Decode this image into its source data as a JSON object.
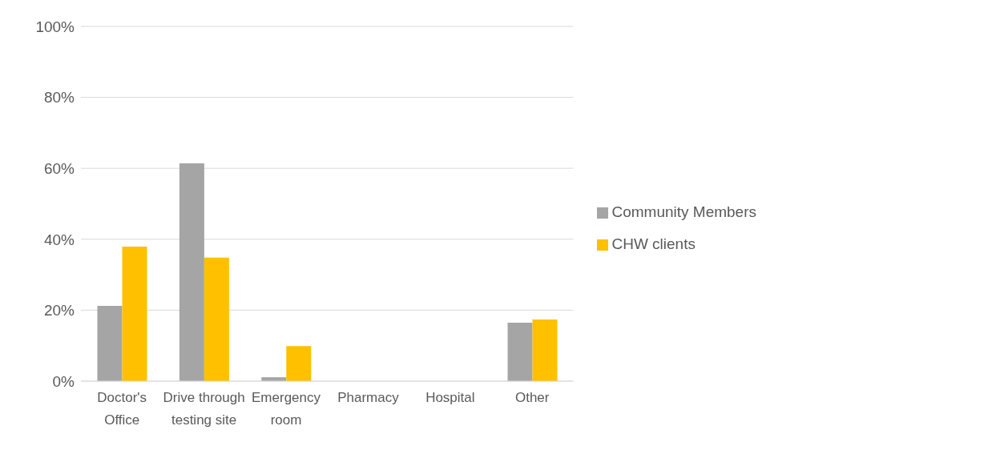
{
  "chart_data": {
    "type": "bar",
    "categories": [
      "Doctor's Office",
      "Drive through testing site",
      "Emergency room",
      "Pharmacy",
      "Hospital",
      "Other"
    ],
    "series": [
      {
        "name": "Community Members",
        "color": "#a5a5a5",
        "values": [
          21.2,
          61.4,
          1.1,
          0,
          0,
          16.5
        ]
      },
      {
        "name": "CHW clients",
        "color": "#ffc000",
        "values": [
          37.9,
          34.8,
          9.9,
          0,
          0,
          17.4
        ]
      }
    ],
    "ylim": [
      0,
      100
    ],
    "yticks": [
      {
        "value": 0,
        "label": "0%"
      },
      {
        "value": 20,
        "label": "20%"
      },
      {
        "value": 40,
        "label": "40%"
      },
      {
        "value": 60,
        "label": "60%"
      },
      {
        "value": 80,
        "label": "80%"
      },
      {
        "value": 100,
        "label": "100%"
      }
    ],
    "grid": "y",
    "legend": "right"
  }
}
